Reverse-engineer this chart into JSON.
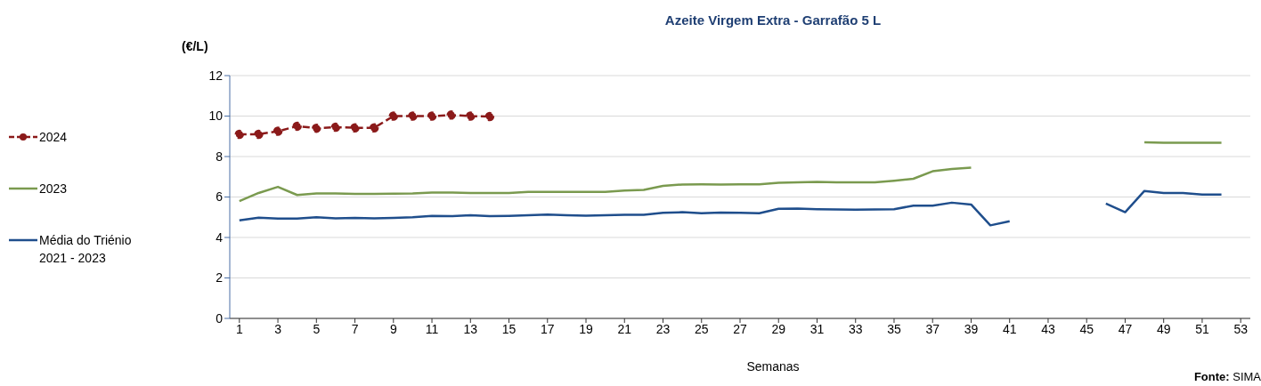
{
  "chart_data": {
    "type": "line",
    "title": "Azeite Virgem Extra - Garrafão 5 L",
    "ylabel": "(€/L)",
    "xlabel": "Semanas",
    "annotations": [
      "Fonte: SIMA"
    ],
    "x": [
      1,
      2,
      3,
      4,
      5,
      6,
      7,
      8,
      9,
      10,
      11,
      12,
      13,
      14,
      15,
      16,
      17,
      18,
      19,
      20,
      21,
      22,
      23,
      24,
      25,
      26,
      27,
      28,
      29,
      30,
      31,
      32,
      33,
      34,
      35,
      36,
      37,
      38,
      39,
      40,
      41,
      42,
      43,
      44,
      45,
      46,
      47,
      48,
      49,
      50,
      51,
      52
    ],
    "xlim": [
      0.5,
      53.5
    ],
    "xticks": [
      1,
      3,
      5,
      7,
      9,
      11,
      13,
      15,
      17,
      19,
      21,
      23,
      25,
      27,
      29,
      31,
      33,
      35,
      37,
      39,
      41,
      43,
      45,
      47,
      49,
      51,
      53
    ],
    "ylim": [
      0,
      12
    ],
    "yticks": [
      0,
      2,
      4,
      6,
      8,
      10,
      12
    ],
    "grid": "y",
    "legend": "left",
    "series": [
      {
        "name": "2024",
        "color": "#8b1a1a",
        "marker": "circle",
        "line_style": "dashed",
        "values": [
          9.1,
          9.1,
          9.25,
          9.5,
          9.4,
          9.45,
          9.42,
          9.42,
          10.0,
          10.0,
          10.0,
          10.05,
          10.0,
          9.98,
          null,
          null,
          null,
          null,
          null,
          null,
          null,
          null,
          null,
          null,
          null,
          null,
          null,
          null,
          null,
          null,
          null,
          null,
          null,
          null,
          null,
          null,
          null,
          null,
          null,
          null,
          null,
          null,
          null,
          null,
          null,
          null,
          null,
          null,
          null,
          null,
          null,
          null
        ]
      },
      {
        "name": "2023",
        "color": "#7a9a4f",
        "marker": "none",
        "line_style": "solid",
        "values": [
          5.8,
          6.2,
          6.5,
          6.1,
          6.18,
          6.18,
          6.15,
          6.15,
          6.17,
          6.18,
          6.22,
          6.22,
          6.2,
          6.2,
          6.2,
          6.25,
          6.25,
          6.25,
          6.25,
          6.25,
          6.32,
          6.35,
          6.55,
          6.62,
          6.63,
          6.62,
          6.63,
          6.63,
          6.7,
          6.72,
          6.75,
          6.73,
          6.73,
          6.72,
          6.8,
          6.9,
          7.27,
          7.38,
          7.45,
          null,
          null,
          null,
          null,
          null,
          null,
          null,
          null,
          8.7,
          8.68,
          8.68,
          8.68,
          8.68
        ]
      },
      {
        "name": "Média do Triénio 2021 - 2023",
        "color": "#1f4e8c",
        "marker": "none",
        "line_style": "solid",
        "values": [
          4.85,
          4.98,
          4.93,
          4.93,
          5.0,
          4.95,
          4.97,
          4.95,
          4.97,
          5.0,
          5.07,
          5.05,
          5.1,
          5.05,
          5.07,
          5.1,
          5.13,
          5.1,
          5.08,
          5.1,
          5.12,
          5.12,
          5.22,
          5.25,
          5.2,
          5.23,
          5.22,
          5.2,
          5.42,
          5.43,
          5.4,
          5.38,
          5.37,
          5.38,
          5.4,
          5.57,
          5.57,
          5.72,
          5.63,
          4.6,
          4.8,
          null,
          null,
          null,
          null,
          5.68,
          5.25,
          6.3,
          6.2,
          6.2,
          6.12,
          6.12
        ]
      }
    ]
  }
}
